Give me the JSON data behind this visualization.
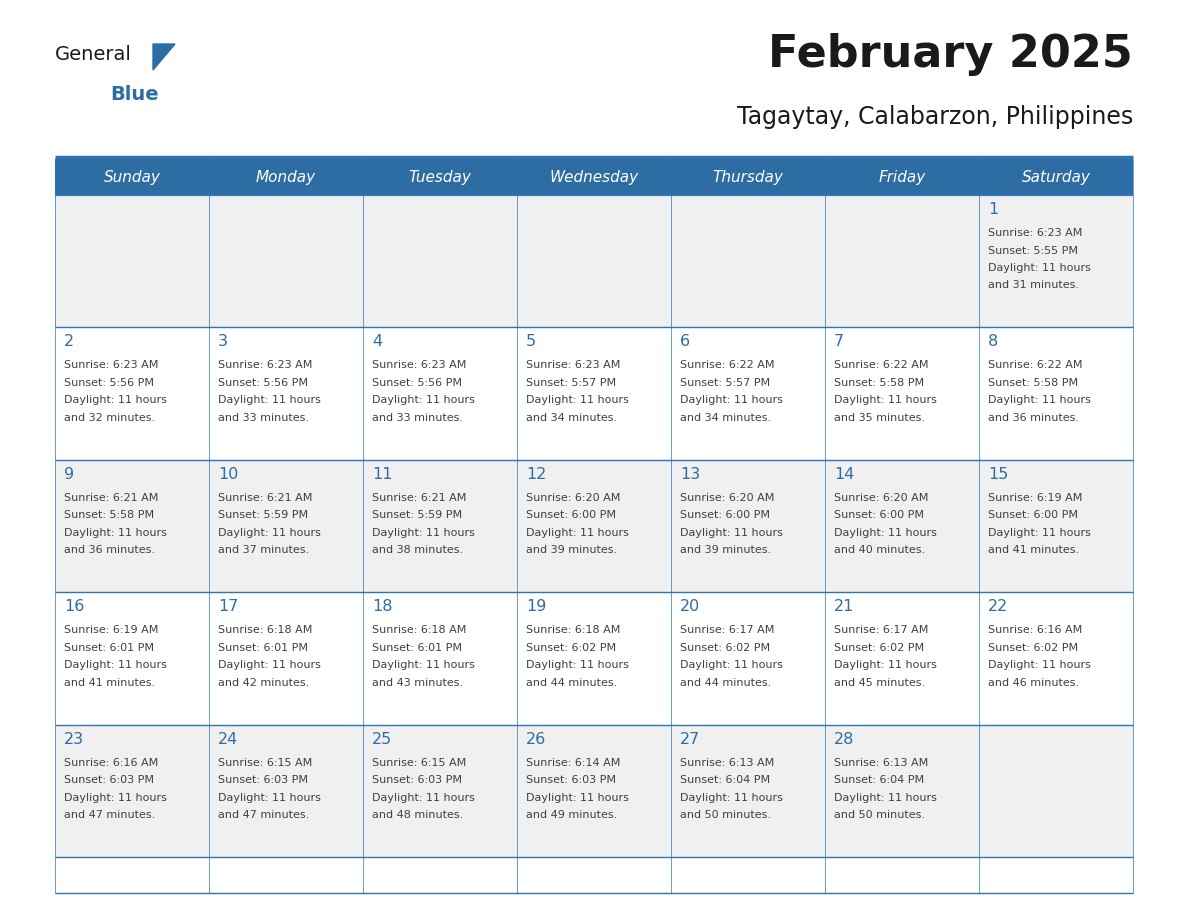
{
  "title": "February 2025",
  "subtitle": "Tagaytay, Calabarzon, Philippines",
  "days_of_week": [
    "Sunday",
    "Monday",
    "Tuesday",
    "Wednesday",
    "Thursday",
    "Friday",
    "Saturday"
  ],
  "header_bg": "#2E6DA4",
  "header_text": "#FFFFFF",
  "cell_bg_light": "#F0F0F0",
  "cell_bg_white": "#FFFFFF",
  "separator_color": "#2E75B6",
  "title_color": "#1a1a1a",
  "subtitle_color": "#1a1a1a",
  "day_number_color": "#2E6DA4",
  "info_text_color": "#404040",
  "logo_general_color": "#1a1a1a",
  "logo_blue_color": "#2E6DA4",
  "logo_triangle_color": "#2E6DA4",
  "calendar_data": [
    {
      "day": 1,
      "row": 0,
      "col": 6,
      "sunrise": "6:23 AM",
      "sunset": "5:55 PM",
      "daylight_hours": 11,
      "daylight_minutes": 31
    },
    {
      "day": 2,
      "row": 1,
      "col": 0,
      "sunrise": "6:23 AM",
      "sunset": "5:56 PM",
      "daylight_hours": 11,
      "daylight_minutes": 32
    },
    {
      "day": 3,
      "row": 1,
      "col": 1,
      "sunrise": "6:23 AM",
      "sunset": "5:56 PM",
      "daylight_hours": 11,
      "daylight_minutes": 33
    },
    {
      "day": 4,
      "row": 1,
      "col": 2,
      "sunrise": "6:23 AM",
      "sunset": "5:56 PM",
      "daylight_hours": 11,
      "daylight_minutes": 33
    },
    {
      "day": 5,
      "row": 1,
      "col": 3,
      "sunrise": "6:23 AM",
      "sunset": "5:57 PM",
      "daylight_hours": 11,
      "daylight_minutes": 34
    },
    {
      "day": 6,
      "row": 1,
      "col": 4,
      "sunrise": "6:22 AM",
      "sunset": "5:57 PM",
      "daylight_hours": 11,
      "daylight_minutes": 34
    },
    {
      "day": 7,
      "row": 1,
      "col": 5,
      "sunrise": "6:22 AM",
      "sunset": "5:58 PM",
      "daylight_hours": 11,
      "daylight_minutes": 35
    },
    {
      "day": 8,
      "row": 1,
      "col": 6,
      "sunrise": "6:22 AM",
      "sunset": "5:58 PM",
      "daylight_hours": 11,
      "daylight_minutes": 36
    },
    {
      "day": 9,
      "row": 2,
      "col": 0,
      "sunrise": "6:21 AM",
      "sunset": "5:58 PM",
      "daylight_hours": 11,
      "daylight_minutes": 36
    },
    {
      "day": 10,
      "row": 2,
      "col": 1,
      "sunrise": "6:21 AM",
      "sunset": "5:59 PM",
      "daylight_hours": 11,
      "daylight_minutes": 37
    },
    {
      "day": 11,
      "row": 2,
      "col": 2,
      "sunrise": "6:21 AM",
      "sunset": "5:59 PM",
      "daylight_hours": 11,
      "daylight_minutes": 38
    },
    {
      "day": 12,
      "row": 2,
      "col": 3,
      "sunrise": "6:20 AM",
      "sunset": "6:00 PM",
      "daylight_hours": 11,
      "daylight_minutes": 39
    },
    {
      "day": 13,
      "row": 2,
      "col": 4,
      "sunrise": "6:20 AM",
      "sunset": "6:00 PM",
      "daylight_hours": 11,
      "daylight_minutes": 39
    },
    {
      "day": 14,
      "row": 2,
      "col": 5,
      "sunrise": "6:20 AM",
      "sunset": "6:00 PM",
      "daylight_hours": 11,
      "daylight_minutes": 40
    },
    {
      "day": 15,
      "row": 2,
      "col": 6,
      "sunrise": "6:19 AM",
      "sunset": "6:00 PM",
      "daylight_hours": 11,
      "daylight_minutes": 41
    },
    {
      "day": 16,
      "row": 3,
      "col": 0,
      "sunrise": "6:19 AM",
      "sunset": "6:01 PM",
      "daylight_hours": 11,
      "daylight_minutes": 41
    },
    {
      "day": 17,
      "row": 3,
      "col": 1,
      "sunrise": "6:18 AM",
      "sunset": "6:01 PM",
      "daylight_hours": 11,
      "daylight_minutes": 42
    },
    {
      "day": 18,
      "row": 3,
      "col": 2,
      "sunrise": "6:18 AM",
      "sunset": "6:01 PM",
      "daylight_hours": 11,
      "daylight_minutes": 43
    },
    {
      "day": 19,
      "row": 3,
      "col": 3,
      "sunrise": "6:18 AM",
      "sunset": "6:02 PM",
      "daylight_hours": 11,
      "daylight_minutes": 44
    },
    {
      "day": 20,
      "row": 3,
      "col": 4,
      "sunrise": "6:17 AM",
      "sunset": "6:02 PM",
      "daylight_hours": 11,
      "daylight_minutes": 44
    },
    {
      "day": 21,
      "row": 3,
      "col": 5,
      "sunrise": "6:17 AM",
      "sunset": "6:02 PM",
      "daylight_hours": 11,
      "daylight_minutes": 45
    },
    {
      "day": 22,
      "row": 3,
      "col": 6,
      "sunrise": "6:16 AM",
      "sunset": "6:02 PM",
      "daylight_hours": 11,
      "daylight_minutes": 46
    },
    {
      "day": 23,
      "row": 4,
      "col": 0,
      "sunrise": "6:16 AM",
      "sunset": "6:03 PM",
      "daylight_hours": 11,
      "daylight_minutes": 47
    },
    {
      "day": 24,
      "row": 4,
      "col": 1,
      "sunrise": "6:15 AM",
      "sunset": "6:03 PM",
      "daylight_hours": 11,
      "daylight_minutes": 47
    },
    {
      "day": 25,
      "row": 4,
      "col": 2,
      "sunrise": "6:15 AM",
      "sunset": "6:03 PM",
      "daylight_hours": 11,
      "daylight_minutes": 48
    },
    {
      "day": 26,
      "row": 4,
      "col": 3,
      "sunrise": "6:14 AM",
      "sunset": "6:03 PM",
      "daylight_hours": 11,
      "daylight_minutes": 49
    },
    {
      "day": 27,
      "row": 4,
      "col": 4,
      "sunrise": "6:13 AM",
      "sunset": "6:04 PM",
      "daylight_hours": 11,
      "daylight_minutes": 50
    },
    {
      "day": 28,
      "row": 4,
      "col": 5,
      "sunrise": "6:13 AM",
      "sunset": "6:04 PM",
      "daylight_hours": 11,
      "daylight_minutes": 50
    }
  ]
}
